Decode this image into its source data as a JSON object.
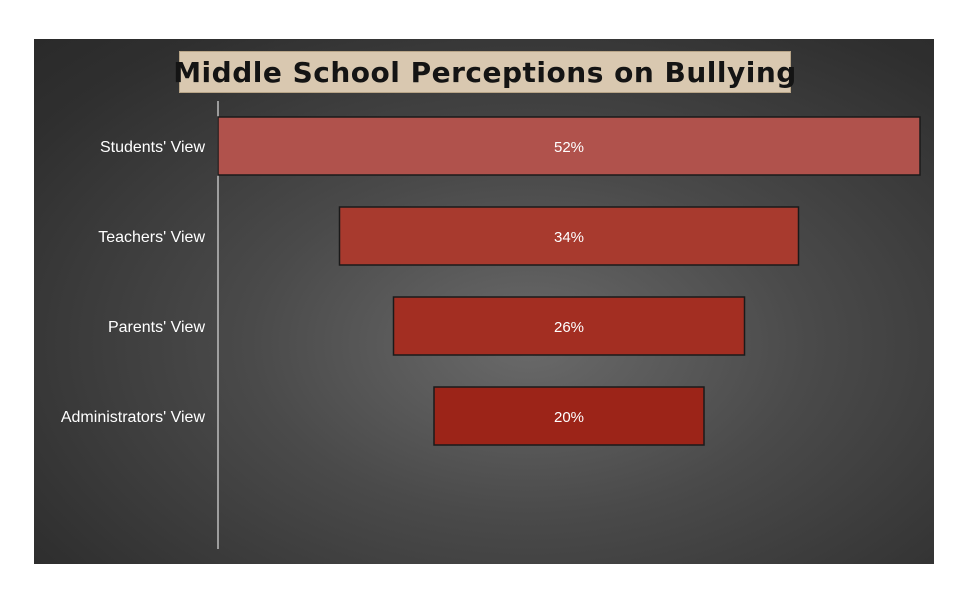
{
  "chart_data": {
    "type": "bar",
    "orientation": "horizontal",
    "style": "funnel",
    "title": "Middle School Perceptions on Bullying",
    "categories": [
      "Students' View",
      "Teachers' View",
      "Parents' View",
      "Administrators' View"
    ],
    "values": [
      52,
      34,
      26,
      20
    ],
    "value_labels": [
      "52%",
      "34%",
      "26%",
      "20%"
    ],
    "unit": "%",
    "xlabel": "",
    "ylabel": "",
    "xlim": [
      0,
      52
    ],
    "grid": false,
    "legend": "none",
    "colors": {
      "panel_background": "#3c3c3c",
      "title_background": "#d9c8b0",
      "bar_fills": [
        "#b0524c",
        "#a83a2e",
        "#a32e22",
        "#9c2418"
      ],
      "bar_border": "#1a1a1a",
      "axis_line": "#bdbdbd",
      "text": "#ffffff"
    }
  }
}
